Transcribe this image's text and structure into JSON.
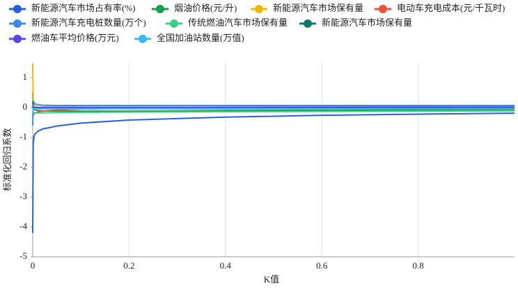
{
  "chart_data": {
    "type": "line",
    "x_label": "K值",
    "y_label": "标准化回归系数",
    "x": [
      0,
      0.001,
      0.003,
      0.005,
      0.01,
      0.02,
      0.05,
      0.1,
      0.2,
      0.4,
      0.6,
      0.8,
      1.0
    ],
    "xlim": [
      0,
      1
    ],
    "ylim": [
      -5,
      1.5
    ],
    "xticks": [
      0,
      0.2,
      0.4,
      0.6,
      0.8
    ],
    "yticks": [
      1,
      0,
      -1,
      -2,
      -3,
      -4,
      -5
    ],
    "grid": "x",
    "series": [
      {
        "name": "新能源汽车市场占有率(%)",
        "color": "#2a5fdc",
        "values": [
          -4.2,
          -1.2,
          -0.95,
          -0.88,
          -0.8,
          -0.72,
          -0.62,
          -0.52,
          -0.42,
          -0.32,
          -0.26,
          -0.22,
          -0.19
        ]
      },
      {
        "name": "烟油价格(元/升)",
        "color": "#14a04c",
        "values": [
          0.5,
          0.05,
          -0.05,
          -0.08,
          -0.1,
          -0.11,
          -0.12,
          -0.12,
          -0.12,
          -0.1,
          -0.09,
          -0.08,
          -0.07
        ]
      },
      {
        "name": "新能源汽车市场保有量",
        "color": "#f2b705",
        "values": [
          1.45,
          0.3,
          0.1,
          0.05,
          0.03,
          0.03,
          0.04,
          0.05,
          0.05,
          0.05,
          0.05,
          0.05,
          0.05
        ]
      },
      {
        "name": "电动车充电成本(元/千瓦时)",
        "color": "#e8533c",
        "values": [
          -0.3,
          -0.25,
          -0.2,
          -0.18,
          -0.15,
          -0.12,
          -0.08,
          -0.05,
          -0.02,
          0.01,
          0.02,
          0.03,
          0.03
        ]
      },
      {
        "name": "新能源汽车充电桩数量(万个)",
        "color": "#3d8ae6",
        "values": [
          -0.6,
          0.2,
          0.15,
          0.12,
          0.1,
          0.08,
          0.07,
          0.07,
          0.07,
          0.07,
          0.07,
          0.07,
          0.07
        ]
      },
      {
        "name": "传统燃油汽车市场保有量",
        "color": "#3ccf8a",
        "values": [
          -0.1,
          -0.15,
          -0.17,
          -0.18,
          -0.18,
          -0.18,
          -0.17,
          -0.16,
          -0.15,
          -0.14,
          -0.13,
          -0.12,
          -0.11
        ]
      },
      {
        "name": "新能源汽车市场保有量",
        "color": "#127a6c",
        "values": [
          0.2,
          0.0,
          -0.02,
          -0.03,
          -0.03,
          -0.03,
          -0.03,
          -0.03,
          -0.03,
          -0.03,
          -0.03,
          -0.03,
          -0.03
        ]
      },
      {
        "name": "燃油车平均价格(万元)",
        "color": "#5848e0",
        "values": [
          0.05,
          0.0,
          0.0,
          0.0,
          0.0,
          0.0,
          0.0,
          0.0,
          0.0,
          0.0,
          0.0,
          0.0,
          0.0
        ]
      },
      {
        "name": "全国加油站数量(万值)",
        "color": "#3bb7ee",
        "values": [
          -0.2,
          -0.05,
          -0.04,
          -0.04,
          -0.04,
          -0.04,
          -0.04,
          -0.04,
          -0.04,
          -0.04,
          -0.04,
          -0.04,
          -0.04
        ]
      }
    ]
  }
}
